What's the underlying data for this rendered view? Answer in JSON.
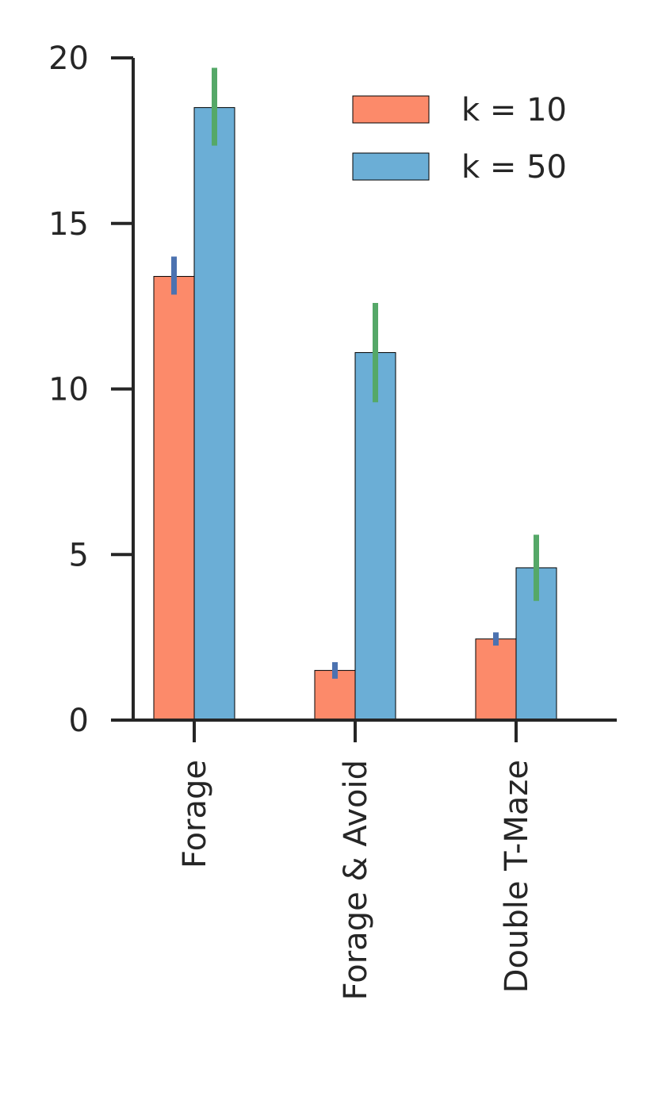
{
  "chart_data": {
    "type": "bar",
    "title": "",
    "xlabel": "",
    "ylabel": "",
    "categories": [
      "Forage",
      "Forage & Avoid",
      "Double T-Maze"
    ],
    "ylim": [
      0,
      20
    ],
    "yticks": [
      0,
      5,
      10,
      15,
      20
    ],
    "grid": false,
    "legend_position": "top-right",
    "series": [
      {
        "name": "k = 10",
        "color": "#fc8a6a",
        "error_color": "#4c72b0",
        "values": [
          13.4,
          1.5,
          2.45
        ],
        "error_low": [
          12.85,
          1.25,
          2.25
        ],
        "error_high": [
          14.0,
          1.75,
          2.65
        ]
      },
      {
        "name": "k = 50",
        "color": "#6baed6",
        "error_color": "#55a868",
        "values": [
          18.5,
          11.1,
          4.6
        ],
        "error_low": [
          17.35,
          9.6,
          3.6
        ],
        "error_high": [
          19.7,
          12.6,
          5.6
        ]
      }
    ]
  }
}
